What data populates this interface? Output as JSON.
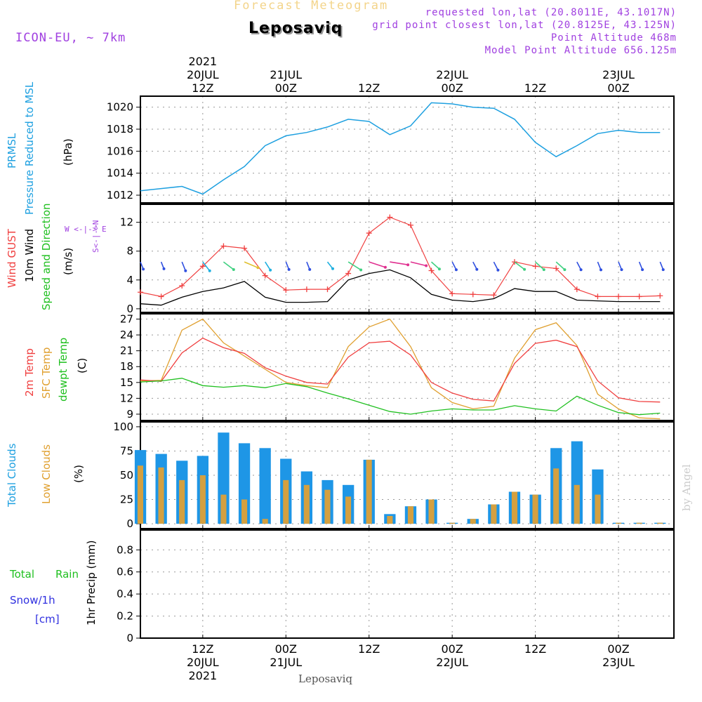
{
  "header": {
    "subtitle": "Forecast Meteogram",
    "location": "Leposaviq",
    "model": "ICON-EU, ~ 7km",
    "requested": "requested lon,lat (20.8011E, 43.1017N)",
    "gridpoint": "grid point closest lon,lat (20.8125E, 43.125N)",
    "point_alt": "Point Altitude 468m",
    "model_alt": "Model Point Altitude 656.125m",
    "credit": "by Angel",
    "footer": "Leposaviq"
  },
  "labels": {
    "prmsl_1": "PRMSL",
    "prmsl_2": "Pressure Reduced to MSL",
    "prmsl_unit": "(hPa)",
    "wind_1": "Wind GUST",
    "wind_2": "10m Wind",
    "wind_3": "Speed and Direction",
    "wind_unit": "(m/s)",
    "compass_ns": "S<-|->N",
    "compass_we": "W <-|-> E",
    "temp_1": "2m Temp",
    "temp_2": "SFC Temp",
    "temp_3": "dewpt Temp",
    "temp_unit": "(C)",
    "cloud_1": "Total Clouds",
    "cloud_2": "Low Clouds",
    "cloud_unit": "(%)",
    "precip_total": "Total",
    "precip_rain": "Rain",
    "precip_snow": "Snow/1h",
    "precip_cm": "[cm]",
    "precip_unit": "1hr Precip (mm)"
  },
  "colors": {
    "pressure": "#1ea0e0",
    "gust": "#f04040",
    "wind": "#000000",
    "temp2m": "#f04040",
    "sfc": "#e0a030",
    "dew": "#20c020",
    "total_cloud": "#1e96e6",
    "low_cloud": "#d4a040",
    "purple": "#a040e0"
  },
  "chart_data": {
    "type": "meteogram",
    "x_hours": [
      0,
      3,
      6,
      9,
      12,
      15,
      18,
      21,
      24,
      27,
      30,
      33,
      36,
      39,
      42,
      45,
      48,
      51,
      54,
      57,
      60,
      63,
      66,
      69,
      72,
      75
    ],
    "x_unit": "hours from 20JUL 03Z",
    "x_range": [
      0,
      77
    ],
    "top_ticks": [
      {
        "h": 9,
        "l1": "2021",
        "l2": "20JUL",
        "l3": "12Z"
      },
      {
        "h": 21,
        "l1": "",
        "l2": "21JUL",
        "l3": "00Z"
      },
      {
        "h": 33,
        "l1": "",
        "l2": "",
        "l3": "12Z"
      },
      {
        "h": 45,
        "l1": "",
        "l2": "22JUL",
        "l3": "00Z"
      },
      {
        "h": 57,
        "l1": "",
        "l2": "",
        "l3": "12Z"
      },
      {
        "h": 69,
        "l1": "",
        "l2": "23JUL",
        "l3": "00Z"
      }
    ],
    "bottom_ticks": [
      {
        "h": 9,
        "l1": "12Z",
        "l2": "20JUL",
        "l3": "2021"
      },
      {
        "h": 21,
        "l1": "00Z",
        "l2": "21JUL",
        "l3": ""
      },
      {
        "h": 33,
        "l1": "12Z",
        "l2": "",
        "l3": ""
      },
      {
        "h": 45,
        "l1": "00Z",
        "l2": "22JUL",
        "l3": ""
      },
      {
        "h": 57,
        "l1": "12Z",
        "l2": "",
        "l3": ""
      },
      {
        "h": 69,
        "l1": "00Z",
        "l2": "23JUL",
        "l3": ""
      }
    ],
    "pressure": {
      "ylim": [
        1011.3,
        1021
      ],
      "yticks": [
        1012,
        1014,
        1016,
        1018,
        1020
      ],
      "values": [
        1012.4,
        1012.6,
        1012.8,
        1012.1,
        1013.4,
        1014.6,
        1016.5,
        1017.4,
        1017.7,
        1018.2,
        1018.9,
        1018.7,
        1017.5,
        1018.3,
        1020.4,
        1020.3,
        1020.0,
        1019.9,
        1018.9,
        1016.8,
        1015.5,
        1016.5,
        1017.6,
        1017.9,
        1017.7,
        1017.7
      ]
    },
    "wind": {
      "ylim": [
        -0.5,
        14.5
      ],
      "yticks": [
        0,
        4,
        8,
        12
      ],
      "gust": [
        2.3,
        1.7,
        3.2,
        5.9,
        8.7,
        8.4,
        4.6,
        2.6,
        2.7,
        2.7,
        4.9,
        10.5,
        12.7,
        11.6,
        5.3,
        2.1,
        2.0,
        1.9,
        6.5,
        5.9,
        5.6,
        2.7,
        1.7,
        1.7,
        1.7,
        1.8
      ],
      "speed": [
        0.7,
        0.5,
        1.6,
        2.4,
        2.9,
        3.8,
        1.6,
        0.9,
        0.9,
        1.0,
        4.0,
        4.9,
        5.4,
        4.3,
        2.0,
        1.2,
        1.0,
        1.4,
        2.8,
        2.4,
        2.4,
        1.2,
        1.1,
        1.0,
        1.0,
        1.0
      ],
      "arrow_level": 6.5,
      "arrow_dirs_deg": [
        20,
        20,
        20,
        35,
        50,
        65,
        30,
        20,
        20,
        35,
        55,
        70,
        80,
        75,
        45,
        25,
        25,
        25,
        50,
        45,
        45,
        25,
        20,
        20,
        20,
        20
      ]
    },
    "temperature": {
      "ylim": [
        7.8,
        28
      ],
      "yticks": [
        9,
        12,
        15,
        18,
        21,
        24,
        27
      ],
      "t2m": [
        15.5,
        15.2,
        20.6,
        23.4,
        21.6,
        20.5,
        17.8,
        16.2,
        15.0,
        14.7,
        19.8,
        22.5,
        22.8,
        20.2,
        15.0,
        13.0,
        11.8,
        11.5,
        18.6,
        22.4,
        23.0,
        21.8,
        15.3,
        12.1,
        11.4,
        11.3
      ],
      "sfc": [
        15.3,
        15.4,
        24.9,
        27.0,
        22.5,
        20.0,
        17.5,
        15.0,
        14.4,
        14.0,
        21.8,
        25.5,
        27.0,
        21.8,
        14.0,
        11.2,
        10.0,
        10.5,
        19.6,
        25.0,
        26.3,
        22.0,
        12.8,
        10.0,
        8.3,
        8.1
      ],
      "dew": [
        15.1,
        15.3,
        15.8,
        14.4,
        14.1,
        14.4,
        14.0,
        14.8,
        14.2,
        13.0,
        11.9,
        10.7,
        9.5,
        9.0,
        9.6,
        10.0,
        9.8,
        9.8,
        10.6,
        10.0,
        9.6,
        12.4,
        10.7,
        9.3,
        8.9,
        9.2
      ]
    },
    "clouds": {
      "ylim": [
        -5,
        105
      ],
      "yticks": [
        0,
        25,
        50,
        75,
        100
      ],
      "total": [
        76,
        72,
        65,
        70,
        94,
        83,
        78,
        67,
        54,
        45,
        40,
        66,
        10,
        18,
        25,
        1,
        5,
        20,
        33,
        30,
        78,
        85,
        56,
        1,
        1,
        1
      ],
      "low": [
        60,
        58,
        45,
        50,
        30,
        25,
        5,
        45,
        40,
        35,
        28,
        66,
        8,
        18,
        25,
        1,
        5,
        20,
        33,
        30,
        57,
        40,
        30,
        1,
        1,
        1
      ]
    },
    "precip": {
      "ylim": [
        0,
        0.98
      ],
      "yticks": [
        0,
        0.2,
        0.4,
        0.6,
        0.8
      ],
      "ytick_labels": [
        "0",
        "0.2",
        "0.4",
        "0.6",
        "0.8"
      ],
      "total": [
        0,
        0,
        0,
        0,
        0,
        0,
        0,
        0,
        0,
        0,
        0,
        0,
        0,
        0,
        0,
        0,
        0,
        0,
        0,
        0,
        0,
        0,
        0,
        0,
        0,
        0
      ]
    }
  }
}
